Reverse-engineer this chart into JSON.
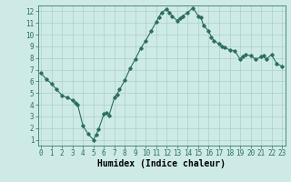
{
  "x": [
    0,
    0.5,
    1,
    1.5,
    2,
    2.5,
    3,
    3.25,
    3.5,
    4,
    4.5,
    5,
    5.25,
    5.5,
    6,
    6.25,
    6.5,
    7,
    7.25,
    7.5,
    8,
    8.5,
    9,
    9.5,
    10,
    10.5,
    11,
    11.25,
    11.5,
    12,
    12.25,
    12.5,
    13,
    13.25,
    13.5,
    14,
    14.5,
    15,
    15.25,
    15.5,
    16,
    16.25,
    16.5,
    17,
    17.25,
    17.5,
    18,
    18.5,
    19,
    19.25,
    19.5,
    20,
    20.5,
    21,
    21.25,
    21.5,
    22,
    22.5,
    23
  ],
  "y": [
    6.7,
    6.2,
    5.8,
    5.3,
    4.8,
    4.6,
    4.4,
    4.2,
    4.0,
    2.2,
    1.5,
    1.0,
    1.4,
    1.9,
    3.2,
    3.3,
    3.1,
    4.6,
    4.9,
    5.3,
    6.1,
    7.1,
    7.9,
    8.8,
    9.5,
    10.3,
    11.1,
    11.5,
    11.9,
    12.2,
    11.9,
    11.6,
    11.2,
    11.4,
    11.6,
    11.9,
    12.3,
    11.6,
    11.5,
    10.8,
    10.3,
    9.8,
    9.5,
    9.2,
    9.0,
    8.9,
    8.7,
    8.6,
    7.9,
    8.1,
    8.3,
    8.2,
    7.9,
    8.1,
    8.2,
    7.9,
    8.3,
    7.5,
    7.3
  ],
  "line_color": "#2d6e62",
  "marker": "D",
  "markersize": 1.8,
  "background_color": "#ceeae7",
  "grid_color": "#aacfcc",
  "xlabel": "Humidex (Indice chaleur)",
  "xlim": [
    -0.3,
    23.3
  ],
  "ylim": [
    0.5,
    12.5
  ],
  "xticks": [
    0,
    1,
    2,
    3,
    4,
    5,
    6,
    7,
    8,
    9,
    10,
    11,
    12,
    13,
    14,
    15,
    16,
    17,
    18,
    19,
    20,
    21,
    22,
    23
  ],
  "yticks": [
    1,
    2,
    3,
    4,
    5,
    6,
    7,
    8,
    9,
    10,
    11,
    12
  ],
  "tick_fontsize": 5.5,
  "xlabel_fontsize": 7,
  "linewidth": 0.8
}
